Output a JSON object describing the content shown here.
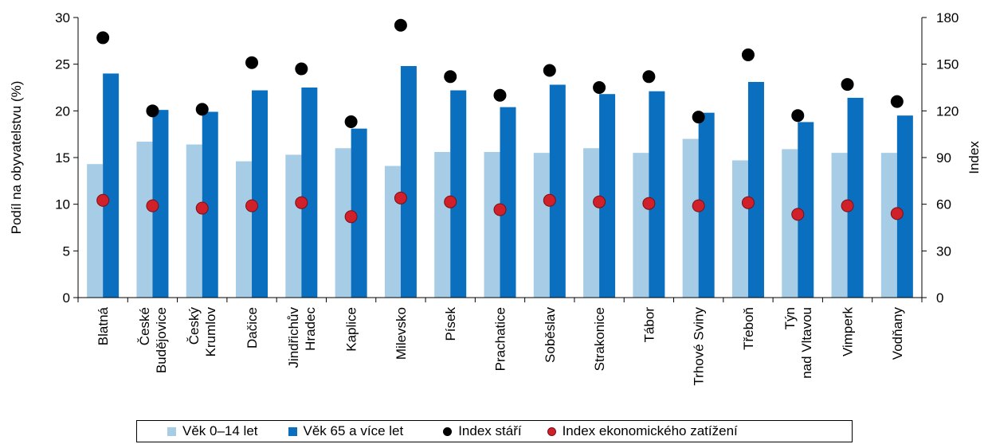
{
  "chart_data": {
    "type": "bar",
    "categories": [
      [
        "Blatná"
      ],
      [
        "České",
        "Budějovice"
      ],
      [
        "Český",
        "Krumlov"
      ],
      [
        "Dačice"
      ],
      [
        "Jindřichův",
        "Hradec"
      ],
      [
        "Kaplice"
      ],
      [
        "Milevsko"
      ],
      [
        "Písek"
      ],
      [
        "Prachatice"
      ],
      [
        "Soběslav"
      ],
      [
        "Strakonice"
      ],
      [
        "Tábor"
      ],
      [
        "Trhové Sviny"
      ],
      [
        "Třeboň"
      ],
      [
        "Týn",
        "nad Vltavou"
      ],
      [
        "Vimperk"
      ],
      [
        "Vodňany"
      ]
    ],
    "ylabel": "Podíl na obyvatelstvu (%)",
    "ylim": [
      0,
      30
    ],
    "yticks": [
      0,
      5,
      10,
      15,
      20,
      25,
      30
    ],
    "y2label": "Index",
    "y2lim": [
      0,
      180
    ],
    "y2ticks": [
      0,
      30,
      60,
      90,
      120,
      150,
      180
    ],
    "grid": false,
    "legend_position": "bottom",
    "series": [
      {
        "name": "Věk 0–14 let",
        "kind": "bar",
        "axis": "left",
        "color": "#a6cce6",
        "values": [
          14.3,
          16.7,
          16.4,
          14.6,
          15.3,
          16.0,
          14.1,
          15.6,
          15.6,
          15.5,
          16.0,
          15.5,
          17.0,
          14.7,
          15.9,
          15.5,
          15.5
        ]
      },
      {
        "name": "Věk 65 a více let",
        "kind": "bar",
        "axis": "left",
        "color": "#0b6fbf",
        "values": [
          24.0,
          20.1,
          19.9,
          22.2,
          22.5,
          18.1,
          24.8,
          22.2,
          20.4,
          22.8,
          21.8,
          22.1,
          19.8,
          23.1,
          18.8,
          21.4,
          19.5
        ]
      },
      {
        "name": "Index stáří",
        "kind": "scatter",
        "axis": "right",
        "color": "#000000",
        "values": [
          167,
          120,
          121,
          151,
          147,
          113,
          175,
          142,
          130,
          146,
          135,
          142,
          116,
          156,
          117,
          137,
          126
        ]
      },
      {
        "name": "Index ekonomického zatížení",
        "kind": "scatter",
        "axis": "right",
        "color": "#d0202a",
        "values": [
          62.5,
          59,
          57.5,
          59,
          61,
          52,
          64,
          61.5,
          56.5,
          62.5,
          61.5,
          60.5,
          59,
          61,
          53.5,
          59,
          54
        ]
      }
    ]
  }
}
